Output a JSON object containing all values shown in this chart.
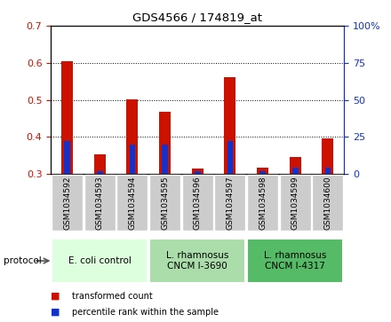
{
  "title": "GDS4566 / 174819_at",
  "samples": [
    "GSM1034592",
    "GSM1034593",
    "GSM1034594",
    "GSM1034595",
    "GSM1034596",
    "GSM1034597",
    "GSM1034598",
    "GSM1034599",
    "GSM1034600"
  ],
  "transformed_count": [
    0.605,
    0.352,
    0.502,
    0.468,
    0.315,
    0.562,
    0.318,
    0.345,
    0.396
  ],
  "percentile_rank": [
    22,
    2,
    20,
    20,
    2,
    22,
    2,
    4,
    4
  ],
  "ylim_left": [
    0.3,
    0.7
  ],
  "ylim_right": [
    0,
    100
  ],
  "yticks_left": [
    0.3,
    0.4,
    0.5,
    0.6,
    0.7
  ],
  "yticks_right": [
    0,
    25,
    50,
    75,
    100
  ],
  "bar_color_red": "#cc1100",
  "bar_color_blue": "#1133cc",
  "bar_bottom": 0.3,
  "bar_width": 0.35,
  "blue_bar_width": 0.18,
  "groups": [
    {
      "label": "E. coli control",
      "indices": [
        0,
        1,
        2
      ],
      "color": "#ddffdd"
    },
    {
      "label": "L. rhamnosus\nCNCM I-3690",
      "indices": [
        3,
        4,
        5
      ],
      "color": "#aaeebb"
    },
    {
      "label": "L. rhamnosus\nCNCM I-4317",
      "indices": [
        6,
        7,
        8
      ],
      "color": "#55cc77"
    }
  ],
  "tick_label_bg": "#cccccc",
  "plot_bg": "#ffffff",
  "tick_color_left": "#cc1100",
  "tick_color_right": "#1133cc",
  "legend_items": [
    {
      "label": "transformed count",
      "color": "#cc1100"
    },
    {
      "label": "percentile rank within the sample",
      "color": "#1133cc"
    }
  ],
  "fig_bg": "#ffffff"
}
